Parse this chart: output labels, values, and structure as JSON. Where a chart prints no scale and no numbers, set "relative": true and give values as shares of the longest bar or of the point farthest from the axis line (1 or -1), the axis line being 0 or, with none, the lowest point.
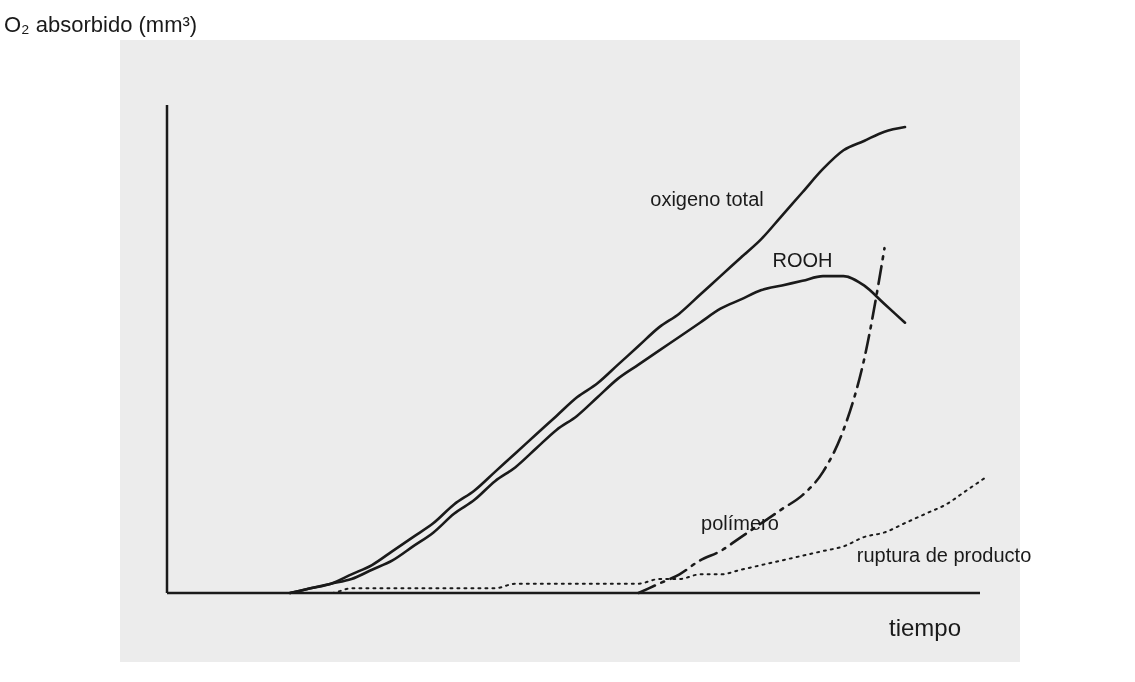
{
  "chart_data": {
    "type": "line",
    "relative": true,
    "ylabel": "O₂ absorbido (mm³)",
    "xlabel": "tiempo",
    "categories": [
      null,
      null,
      null,
      null,
      null,
      null,
      null,
      null,
      null,
      null,
      null,
      null,
      null,
      null,
      null,
      null,
      null,
      null,
      null,
      null,
      null,
      null,
      null,
      null,
      null,
      null,
      null,
      null,
      null,
      null,
      null,
      null,
      null,
      null,
      null,
      null,
      null,
      null,
      null,
      null,
      null
    ],
    "series": [
      {
        "name": "oxigeno total",
        "color": "#1a1a1a",
        "line_style": "solid",
        "values": [
          null,
          null,
          null,
          null,
          null,
          null,
          0,
          0.01,
          0.02,
          0.04,
          0.06,
          0.09,
          0.12,
          0.15,
          0.19,
          0.22,
          0.26,
          0.3,
          0.34,
          0.38,
          0.42,
          0.45,
          0.49,
          0.53,
          0.57,
          0.6,
          0.64,
          0.68,
          0.72,
          0.76,
          0.81,
          0.86,
          0.91,
          0.95,
          0.97,
          0.99,
          1.0,
          null,
          null,
          null,
          null
        ]
      },
      {
        "name": "ROOH",
        "color": "#1a1a1a",
        "line_style": "solid",
        "values": [
          null,
          null,
          null,
          null,
          null,
          null,
          0,
          0.01,
          0.02,
          0.03,
          0.05,
          0.07,
          0.1,
          0.13,
          0.17,
          0.2,
          0.24,
          0.27,
          0.31,
          0.35,
          0.38,
          0.42,
          0.46,
          0.49,
          0.52,
          0.55,
          0.58,
          0.61,
          0.63,
          0.65,
          0.66,
          0.67,
          0.68,
          0.68,
          0.66,
          0.62,
          0.58,
          null,
          null,
          null,
          null
        ]
      },
      {
        "name": "polímero",
        "color": "#1a1a1a",
        "line_style": "dashed",
        "values": [
          null,
          null,
          null,
          null,
          null,
          null,
          null,
          null,
          null,
          null,
          null,
          null,
          null,
          null,
          null,
          null,
          null,
          null,
          null,
          null,
          null,
          null,
          null,
          0,
          0.02,
          0.04,
          0.07,
          0.09,
          0.12,
          0.15,
          0.18,
          0.21,
          0.26,
          0.35,
          0.5,
          0.74,
          null,
          null,
          null,
          null,
          null
        ]
      },
      {
        "name": "ruptura de producto",
        "color": "#1a1a1a",
        "line_style": "dotted",
        "values": [
          null,
          null,
          null,
          null,
          null,
          null,
          0,
          0,
          0,
          0.01,
          0.01,
          0.01,
          0.01,
          0.01,
          0.01,
          0.01,
          0.01,
          0.02,
          0.02,
          0.02,
          0.02,
          0.02,
          0.02,
          0.02,
          0.03,
          0.03,
          0.04,
          0.04,
          0.05,
          0.06,
          0.07,
          0.08,
          0.09,
          0.1,
          0.12,
          0.13,
          0.15,
          0.17,
          0.19,
          0.22,
          0.25
        ]
      }
    ]
  }
}
